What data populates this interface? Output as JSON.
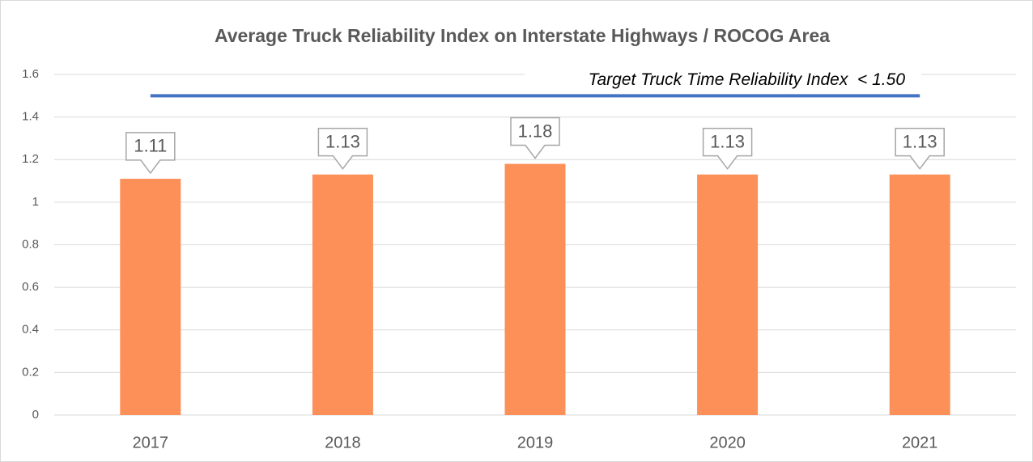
{
  "chart_data": {
    "type": "bar",
    "title": "Average Truck Reliability Index on Interstate Highways / ROCOG Area",
    "categories": [
      "2017",
      "2018",
      "2019",
      "2020",
      "2021"
    ],
    "values": [
      1.11,
      1.13,
      1.18,
      1.13,
      1.13
    ],
    "color": "#fd8f58",
    "ylim": [
      0,
      1.6
    ],
    "yticks": [
      0,
      0.2,
      0.4,
      0.6,
      0.8,
      1,
      1.2,
      1.4,
      1.6
    ],
    "grid": true,
    "target": 1.5,
    "target_color": "#4472c4",
    "annotation": "Target Truck Time Reliability Index  < 1.50"
  }
}
